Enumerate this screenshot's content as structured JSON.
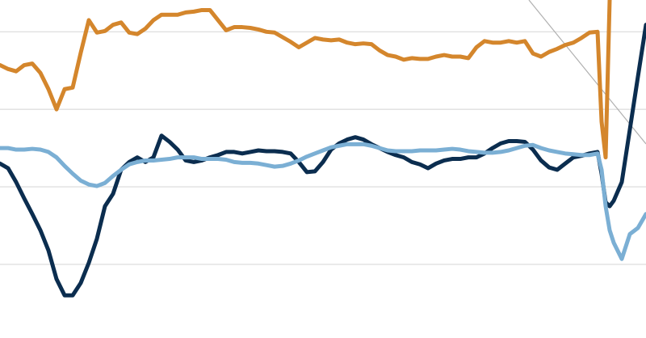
{
  "chart_data": {
    "type": "line",
    "x": [
      0,
      10,
      20,
      30,
      40,
      50,
      60,
      70,
      80,
      90,
      100,
      110,
      120,
      130,
      140,
      150,
      160,
      170,
      180,
      190,
      200,
      210,
      220,
      230,
      240,
      250,
      260,
      270,
      280,
      290,
      300,
      310,
      320,
      330,
      340,
      350,
      360,
      370,
      380,
      390,
      400,
      410,
      420,
      430,
      440,
      450,
      460,
      470,
      480,
      490,
      500,
      510,
      520,
      530,
      540,
      550,
      560,
      570,
      580,
      590,
      600,
      610,
      620,
      630,
      640,
      650,
      660,
      670,
      680,
      690,
      700,
      710,
      720,
      730,
      740,
      745,
      750,
      755,
      760,
      770,
      780,
      790,
      800
    ],
    "xlim": [
      0,
      800
    ],
    "ylim": [
      -0.95,
      3.41
    ],
    "yticks": [
      0,
      1,
      2,
      3
    ],
    "grid": true,
    "series": [
      {
        "color": "#0b2d4f",
        "values": [
          1.3,
          1.24,
          1.06,
          0.85,
          0.65,
          0.44,
          0.18,
          -0.19,
          -0.4,
          -0.4,
          -0.24,
          0.02,
          0.33,
          0.75,
          0.91,
          1.22,
          1.32,
          1.38,
          1.32,
          1.38,
          1.66,
          1.58,
          1.48,
          1.34,
          1.32,
          1.34,
          1.38,
          1.41,
          1.45,
          1.45,
          1.43,
          1.45,
          1.47,
          1.46,
          1.46,
          1.45,
          1.43,
          1.32,
          1.19,
          1.2,
          1.32,
          1.48,
          1.56,
          1.61,
          1.64,
          1.61,
          1.55,
          1.5,
          1.45,
          1.41,
          1.38,
          1.32,
          1.29,
          1.24,
          1.3,
          1.34,
          1.36,
          1.36,
          1.38,
          1.38,
          1.43,
          1.5,
          1.56,
          1.59,
          1.59,
          1.58,
          1.48,
          1.34,
          1.25,
          1.22,
          1.3,
          1.38,
          1.4,
          1.43,
          1.45,
          1.17,
          0.8,
          0.75,
          0.82,
          1.06,
          1.74,
          2.42,
          3.09
        ]
      },
      {
        "color": "#7bafd4",
        "values": [
          1.5,
          1.5,
          1.48,
          1.48,
          1.49,
          1.48,
          1.45,
          1.38,
          1.27,
          1.17,
          1.08,
          1.03,
          1.01,
          1.05,
          1.14,
          1.22,
          1.29,
          1.32,
          1.34,
          1.34,
          1.35,
          1.36,
          1.38,
          1.38,
          1.38,
          1.36,
          1.36,
          1.36,
          1.35,
          1.32,
          1.31,
          1.31,
          1.3,
          1.28,
          1.26,
          1.27,
          1.3,
          1.34,
          1.39,
          1.43,
          1.47,
          1.51,
          1.53,
          1.55,
          1.55,
          1.55,
          1.53,
          1.5,
          1.47,
          1.46,
          1.46,
          1.46,
          1.47,
          1.47,
          1.47,
          1.48,
          1.49,
          1.48,
          1.46,
          1.45,
          1.44,
          1.44,
          1.45,
          1.47,
          1.5,
          1.53,
          1.54,
          1.5,
          1.47,
          1.45,
          1.43,
          1.42,
          1.41,
          1.41,
          1.43,
          1.22,
          0.75,
          0.44,
          0.28,
          0.07,
          0.39,
          0.47,
          0.65
        ]
      },
      {
        "color": "#d4862c",
        "values": [
          2.57,
          2.52,
          2.49,
          2.57,
          2.59,
          2.47,
          2.26,
          2.0,
          2.26,
          2.28,
          2.73,
          3.15,
          2.99,
          3.01,
          3.09,
          3.12,
          2.99,
          2.97,
          3.04,
          3.15,
          3.22,
          3.22,
          3.22,
          3.25,
          3.26,
          3.28,
          3.28,
          3.15,
          3.02,
          3.06,
          3.06,
          3.05,
          3.03,
          3.0,
          2.99,
          2.93,
          2.87,
          2.8,
          2.86,
          2.92,
          2.9,
          2.89,
          2.9,
          2.86,
          2.84,
          2.85,
          2.84,
          2.76,
          2.7,
          2.68,
          2.64,
          2.66,
          2.65,
          2.65,
          2.68,
          2.7,
          2.68,
          2.68,
          2.66,
          2.8,
          2.88,
          2.86,
          2.86,
          2.88,
          2.86,
          2.88,
          2.72,
          2.68,
          2.74,
          2.78,
          2.83,
          2.86,
          2.92,
          2.99,
          3.0,
          1.84,
          1.38,
          3.41,
          null,
          null,
          null,
          null,
          null
        ]
      }
    ]
  }
}
